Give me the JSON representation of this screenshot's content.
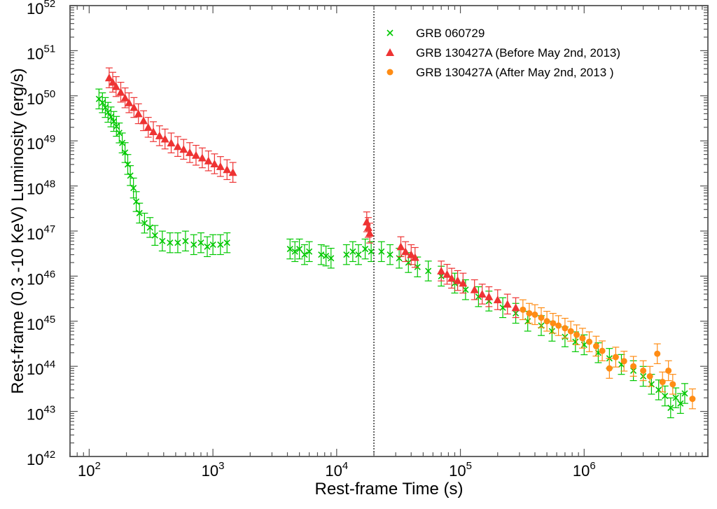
{
  "chart_data": {
    "type": "scatter",
    "title": "",
    "xlabel": "Rest-frame Time (s)",
    "ylabel": "Rest-frame (0.3 -10 KeV) Luminosity (erg/s)",
    "xscale": "log",
    "yscale": "log",
    "xlim": [
      70,
      10000000
    ],
    "ylim": [
      1e+42,
      1e+52
    ],
    "x_ticks": [
      {
        "base": "10",
        "exp": "2",
        "value": 100
      },
      {
        "base": "10",
        "exp": "3",
        "value": 1000
      },
      {
        "base": "10",
        "exp": "4",
        "value": 10000
      },
      {
        "base": "10",
        "exp": "5",
        "value": 100000
      },
      {
        "base": "10",
        "exp": "6",
        "value": 1000000
      }
    ],
    "y_ticks": [
      {
        "base": "10",
        "exp": "42",
        "value": 1e+42
      },
      {
        "base": "10",
        "exp": "43",
        "value": 1e+43
      },
      {
        "base": "10",
        "exp": "44",
        "value": 1e+44
      },
      {
        "base": "10",
        "exp": "45",
        "value": 1e+45
      },
      {
        "base": "10",
        "exp": "46",
        "value": 1e+46
      },
      {
        "base": "10",
        "exp": "47",
        "value": 1e+47
      },
      {
        "base": "10",
        "exp": "48",
        "value": 1e+48
      },
      {
        "base": "10",
        "exp": "49",
        "value": 1e+49
      },
      {
        "base": "10",
        "exp": "50",
        "value": 1e+50
      },
      {
        "base": "10",
        "exp": "51",
        "value": 1e+51
      },
      {
        "base": "10",
        "exp": "52",
        "value": 1e+52
      }
    ],
    "vline_x": 20000,
    "grid": false,
    "legend_position": "top-right",
    "series": [
      {
        "name": "GRB 060729",
        "marker": "x",
        "color": "#00c800",
        "points": [
          [
            120,
            8.5e+49
          ],
          [
            128,
            7e+49
          ],
          [
            135,
            5.5e+49
          ],
          [
            142,
            4.3e+49
          ],
          [
            150,
            3.4e+49
          ],
          [
            158,
            2.7e+49
          ],
          [
            166,
            2.1e+49
          ],
          [
            175,
            1.5e+49
          ],
          [
            185,
            9e+48
          ],
          [
            195,
            5.5e+48
          ],
          [
            205,
            3e+48
          ],
          [
            215,
            1.7e+48
          ],
          [
            228,
            9e+47
          ],
          [
            240,
            4.5e+47
          ],
          [
            255,
            2.5e+47
          ],
          [
            280,
            1.5e+47
          ],
          [
            310,
            1.2e+47
          ],
          [
            340,
            8e+46
          ],
          [
            390,
            6e+46
          ],
          [
            450,
            5.5e+46
          ],
          [
            520,
            5.5e+46
          ],
          [
            600,
            6e+46
          ],
          [
            700,
            5e+46
          ],
          [
            800,
            5.5e+46
          ],
          [
            900,
            4.5e+46
          ],
          [
            1000,
            5e+46
          ],
          [
            1150,
            5e+46
          ],
          [
            1300,
            5.5e+46
          ],
          [
            4200,
            4e+46
          ],
          [
            4600,
            3.5e+46
          ],
          [
            5000,
            4e+46
          ],
          [
            5500,
            3e+46
          ],
          [
            6000,
            3.5e+46
          ],
          [
            7500,
            3e+46
          ],
          [
            8200,
            2.8e+46
          ],
          [
            9000,
            2.5e+46
          ],
          [
            12000,
            3e+46
          ],
          [
            13500,
            3.5e+46
          ],
          [
            15000,
            3e+46
          ],
          [
            17000,
            4e+46
          ],
          [
            19000,
            3.5e+46
          ],
          [
            23000,
            3.5e+46
          ],
          [
            27000,
            3e+46
          ],
          [
            32000,
            2.5e+46
          ],
          [
            38000,
            2e+46
          ],
          [
            45000,
            1.6e+46
          ],
          [
            55000,
            1.3e+46
          ],
          [
            70000,
            1e+46
          ],
          [
            90000,
            7e+45
          ],
          [
            110000,
            5e+45
          ],
          [
            140000,
            3.5e+45
          ],
          [
            170000,
            2.8e+45
          ],
          [
            220000,
            2e+45
          ],
          [
            280000,
            1.5e+45
          ],
          [
            350000,
            1e+45
          ],
          [
            450000,
            8e+44
          ],
          [
            550000,
            6e+44
          ],
          [
            700000,
            4.5e+44
          ],
          [
            850000,
            3.5e+44
          ],
          [
            1000000,
            3e+44
          ],
          [
            1300000,
            2e+44
          ],
          [
            1600000,
            1.5e+44
          ],
          [
            2000000,
            1.1e+44
          ],
          [
            2500000,
            8e+43
          ],
          [
            3000000,
            6e+43
          ],
          [
            3500000,
            4e+43
          ],
          [
            4000000,
            3e+43
          ],
          [
            4500000,
            2.2e+43
          ],
          [
            5000000,
            1.2e+43
          ],
          [
            5500000,
            2e+43
          ],
          [
            6000000,
            1.5e+43
          ],
          [
            6500000,
            2.5e+43
          ]
        ]
      },
      {
        "name": "GRB 130427A (Before May 2nd, 2013)",
        "marker": "triangle",
        "color": "#ee3333",
        "points": [
          [
            145,
            2.5e+50
          ],
          [
            155,
            2e+50
          ],
          [
            165,
            1.6e+50
          ],
          [
            180,
            1.2e+50
          ],
          [
            195,
            9e+49
          ],
          [
            210,
            7e+49
          ],
          [
            230,
            5.5e+49
          ],
          [
            250,
            4e+49
          ],
          [
            275,
            2.8e+49
          ],
          [
            300,
            2e+49
          ],
          [
            330,
            1.6e+49
          ],
          [
            370,
            1.3e+49
          ],
          [
            410,
            1.1e+49
          ],
          [
            460,
            9e+48
          ],
          [
            520,
            7.5e+48
          ],
          [
            580,
            6.5e+48
          ],
          [
            650,
            5.5e+48
          ],
          [
            730,
            4.8e+48
          ],
          [
            820,
            4.2e+48
          ],
          [
            920,
            3.6e+48
          ],
          [
            1030,
            3.1e+48
          ],
          [
            1150,
            2.7e+48
          ],
          [
            1300,
            2.3e+48
          ],
          [
            1450,
            2e+48
          ],
          [
            17500,
            1.6e+47
          ],
          [
            18000,
            1.2e+47
          ],
          [
            18500,
            9e+46
          ],
          [
            33000,
            4.5e+46
          ],
          [
            36000,
            3.5e+46
          ],
          [
            40000,
            3e+46
          ],
          [
            43000,
            2.6e+46
          ],
          [
            70000,
            1.3e+46
          ],
          [
            78000,
            1.1e+46
          ],
          [
            85000,
            9e+45
          ],
          [
            95000,
            8e+45
          ],
          [
            105000,
            7e+45
          ],
          [
            130000,
            5e+45
          ],
          [
            150000,
            4e+45
          ],
          [
            170000,
            3.5e+45
          ],
          [
            200000,
            3e+45
          ],
          [
            240000,
            2.4e+45
          ],
          [
            280000,
            2e+45
          ]
        ]
      },
      {
        "name": "GRB 130427A (After May 2nd, 2013 )",
        "marker": "circle",
        "color": "#ff8c14",
        "points": [
          [
            320000,
            1.8e+45
          ],
          [
            360000,
            1.5e+45
          ],
          [
            400000,
            1.4e+45
          ],
          [
            450000,
            1.2e+45
          ],
          [
            500000,
            1e+45
          ],
          [
            560000,
            9e+44
          ],
          [
            620000,
            8e+44
          ],
          [
            700000,
            7e+44
          ],
          [
            780000,
            6e+44
          ],
          [
            870000,
            5e+44
          ],
          [
            970000,
            4.2e+44
          ],
          [
            1100000,
            3.5e+44
          ],
          [
            1250000,
            2.8e+44
          ],
          [
            1400000,
            2.2e+44
          ],
          [
            1600000,
            9e+43
          ],
          [
            1800000,
            1.6e+44
          ],
          [
            2100000,
            1.3e+44
          ],
          [
            2500000,
            1e+44
          ],
          [
            3000000,
            8e+43
          ],
          [
            3400000,
            6e+43
          ],
          [
            3900000,
            1.9e+44
          ],
          [
            4300000,
            4.5e+43
          ],
          [
            4800000,
            8e+43
          ],
          [
            5200000,
            4e+43
          ],
          [
            7500000,
            1.9e+43
          ]
        ]
      }
    ]
  }
}
